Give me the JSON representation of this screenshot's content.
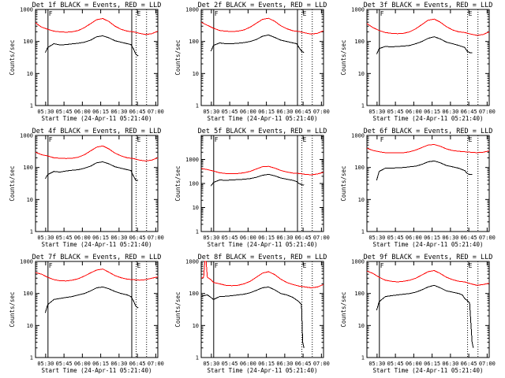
{
  "colors": {
    "events": "#000000",
    "lld": "#ff0000",
    "background": "#ffffff",
    "axes": "#000000"
  },
  "shared": {
    "ylabel": "Counts/sec",
    "xlabel": "Start Time (24-Apr-11 05:21:40)",
    "x_tick_labels": [
      "05:30",
      "05:45",
      "06:00",
      "06:15",
      "06:30",
      "06:45",
      "07:00"
    ],
    "y_tick_labels": [
      "1",
      "10",
      "100",
      "1000"
    ],
    "marker_labels": {
      "first": "F",
      "last": "E"
    }
  },
  "chart_data": [
    {
      "type": "line",
      "title": "Det 1f BLACK = Events, RED = LLD",
      "x_unit": "minutes after 05:21:40",
      "xlim": [
        0,
        100
      ],
      "ylim": [
        1,
        1000
      ],
      "yscale": "log",
      "x_ticks": [
        8.3,
        23.3,
        38.3,
        53.3,
        68.3,
        83.3,
        98.3
      ],
      "markers_solid": [
        10.2,
        78.7
      ],
      "markers_dotted": [
        82.3,
        90.8
      ],
      "series": [
        {
          "name": "Events",
          "color": "#000000",
          "x": [
            8,
            10,
            15,
            20,
            25,
            30,
            35,
            40,
            45,
            50,
            55,
            60,
            65,
            70,
            75,
            78,
            80,
            82,
            84
          ],
          "y": [
            45,
            65,
            85,
            78,
            80,
            84,
            88,
            95,
            110,
            140,
            150,
            130,
            105,
            95,
            85,
            80,
            60,
            40,
            35
          ]
        },
        {
          "name": "LLD",
          "color": "#ff0000",
          "x": [
            0,
            5,
            10,
            15,
            20,
            25,
            30,
            35,
            40,
            45,
            50,
            55,
            60,
            65,
            70,
            75,
            80,
            85,
            90,
            95,
            100
          ],
          "y": [
            380,
            280,
            240,
            210,
            200,
            195,
            200,
            220,
            270,
            360,
            480,
            520,
            420,
            300,
            240,
            210,
            200,
            180,
            165,
            175,
            210
          ]
        }
      ]
    },
    {
      "type": "line",
      "title": "Det 2f BLACK = Events, RED = LLD",
      "x_unit": "minutes after 05:21:40",
      "xlim": [
        0,
        100
      ],
      "ylim": [
        1,
        1000
      ],
      "yscale": "log",
      "x_ticks": [
        8.3,
        23.3,
        38.3,
        53.3,
        68.3,
        83.3,
        98.3
      ],
      "markers_solid": [
        10.2,
        78.7
      ],
      "markers_dotted": [
        82.3,
        90.8
      ],
      "series": [
        {
          "name": "Events",
          "color": "#000000",
          "x": [
            8,
            10,
            15,
            20,
            25,
            30,
            35,
            40,
            45,
            50,
            55,
            60,
            65,
            70,
            75,
            78,
            80,
            82,
            84
          ],
          "y": [
            50,
            75,
            90,
            85,
            85,
            88,
            92,
            100,
            115,
            145,
            160,
            135,
            110,
            100,
            90,
            85,
            65,
            50,
            45
          ]
        },
        {
          "name": "LLD",
          "color": "#ff0000",
          "x": [
            0,
            5,
            10,
            15,
            20,
            25,
            30,
            35,
            40,
            45,
            50,
            55,
            60,
            65,
            70,
            75,
            80,
            85,
            90,
            95,
            100
          ],
          "y": [
            400,
            320,
            260,
            220,
            210,
            205,
            210,
            230,
            280,
            370,
            490,
            530,
            430,
            310,
            250,
            215,
            205,
            185,
            170,
            180,
            215
          ]
        }
      ]
    },
    {
      "type": "line",
      "title": "Det 3f BLACK = Events, RED = LLD",
      "x_unit": "minutes after 05:21:40",
      "xlim": [
        0,
        100
      ],
      "ylim": [
        1,
        1000
      ],
      "yscale": "log",
      "x_ticks": [
        8.3,
        23.3,
        38.3,
        53.3,
        68.3,
        83.3,
        98.3
      ],
      "markers_solid": [
        10.2
      ],
      "markers_dotted": [
        82.3,
        90.8
      ],
      "series": [
        {
          "name": "Events",
          "color": "#000000",
          "x": [
            8,
            10,
            15,
            20,
            25,
            30,
            35,
            40,
            45,
            50,
            55,
            60,
            65,
            70,
            75,
            80,
            82,
            84,
            86
          ],
          "y": [
            40,
            60,
            70,
            68,
            70,
            72,
            75,
            85,
            100,
            125,
            140,
            120,
            95,
            85,
            75,
            65,
            50,
            45,
            45
          ]
        },
        {
          "name": "LLD",
          "color": "#ff0000",
          "x": [
            0,
            5,
            10,
            15,
            20,
            25,
            30,
            35,
            40,
            45,
            50,
            55,
            60,
            65,
            70,
            75,
            80,
            85,
            90,
            95,
            100
          ],
          "y": [
            360,
            270,
            220,
            190,
            180,
            175,
            180,
            200,
            250,
            340,
            460,
            500,
            400,
            290,
            230,
            200,
            190,
            170,
            155,
            165,
            200
          ]
        }
      ]
    },
    {
      "type": "line",
      "title": "Det 4f BLACK = Events, RED = LLD",
      "x_unit": "minutes after 05:21:40",
      "xlim": [
        0,
        100
      ],
      "ylim": [
        1,
        1000
      ],
      "yscale": "log",
      "x_ticks": [
        8.3,
        23.3,
        38.3,
        53.3,
        68.3,
        83.3,
        98.3
      ],
      "markers_solid": [
        10.2,
        78.7
      ],
      "markers_dotted": [
        82.3,
        90.8
      ],
      "series": [
        {
          "name": "Events",
          "color": "#000000",
          "x": [
            8,
            10,
            15,
            20,
            25,
            30,
            35,
            40,
            45,
            50,
            55,
            60,
            65,
            70,
            75,
            78,
            80,
            82,
            84
          ],
          "y": [
            45,
            60,
            75,
            72,
            78,
            82,
            85,
            95,
            110,
            140,
            150,
            130,
            105,
            95,
            85,
            80,
            55,
            40,
            40
          ]
        },
        {
          "name": "LLD",
          "color": "#ff0000",
          "x": [
            0,
            5,
            10,
            15,
            20,
            25,
            30,
            35,
            40,
            45,
            50,
            55,
            60,
            65,
            70,
            75,
            80,
            85,
            90,
            95,
            100
          ],
          "y": [
            300,
            250,
            230,
            200,
            195,
            190,
            195,
            210,
            250,
            330,
            430,
            470,
            380,
            280,
            230,
            200,
            190,
            170,
            160,
            170,
            200
          ]
        }
      ]
    },
    {
      "type": "line",
      "title": "Det 5f BLACK = Events, RED = LLD",
      "x_unit": "minutes after 05:21:40",
      "xlim": [
        0,
        100
      ],
      "ylim": [
        1,
        10000
      ],
      "yscale": "log",
      "x_ticks": [
        8.3,
        23.3,
        38.3,
        53.3,
        68.3,
        83.3,
        98.3
      ],
      "markers_solid": [
        10.2,
        78.7
      ],
      "markers_dotted": [
        82.3,
        90.8
      ],
      "series": [
        {
          "name": "Events",
          "color": "#000000",
          "x": [
            8,
            10,
            15,
            20,
            25,
            30,
            35,
            40,
            45,
            50,
            55,
            60,
            65,
            70,
            75,
            78,
            80,
            82,
            84
          ],
          "y": [
            80,
            110,
            140,
            135,
            140,
            145,
            150,
            160,
            180,
            220,
            240,
            210,
            170,
            150,
            135,
            120,
            100,
            90,
            85
          ]
        },
        {
          "name": "LLD",
          "color": "#ff0000",
          "x": [
            0,
            5,
            10,
            15,
            20,
            25,
            30,
            35,
            40,
            45,
            50,
            55,
            60,
            65,
            70,
            75,
            80,
            85,
            90,
            95,
            100
          ],
          "y": [
            420,
            380,
            330,
            280,
            260,
            255,
            260,
            280,
            320,
            400,
            500,
            520,
            440,
            350,
            300,
            270,
            260,
            240,
            230,
            250,
            290
          ]
        }
      ]
    },
    {
      "type": "line",
      "title": "Det 6f BLACK = Events, RED = LLD",
      "x_unit": "minutes after 05:21:40",
      "xlim": [
        0,
        100
      ],
      "ylim": [
        1,
        1000
      ],
      "yscale": "log",
      "x_ticks": [
        8.3,
        23.3,
        38.3,
        53.3,
        68.3,
        83.3,
        98.3
      ],
      "markers_solid": [],
      "markers_dotted": [
        82.3,
        90.8
      ],
      "series": [
        {
          "name": "Events",
          "color": "#000000",
          "x": [
            8,
            10,
            15,
            20,
            25,
            30,
            35,
            40,
            45,
            50,
            55,
            60,
            65,
            70,
            75,
            80,
            82,
            84,
            86
          ],
          "y": [
            40,
            75,
            95,
            95,
            98,
            100,
            105,
            110,
            125,
            150,
            160,
            140,
            115,
            105,
            95,
            80,
            65,
            60,
            60
          ]
        },
        {
          "name": "LLD",
          "color": "#ff0000",
          "x": [
            0,
            5,
            10,
            15,
            20,
            25,
            30,
            35,
            40,
            45,
            50,
            55,
            60,
            65,
            70,
            75,
            80,
            85,
            90,
            95,
            100
          ],
          "y": [
            400,
            340,
            310,
            290,
            285,
            285,
            290,
            310,
            350,
            420,
            500,
            520,
            460,
            380,
            340,
            320,
            310,
            300,
            290,
            300,
            330
          ]
        }
      ]
    },
    {
      "type": "line",
      "title": "Det 7f BLACK = Events, RED = LLD",
      "x_unit": "minutes after 05:21:40",
      "xlim": [
        0,
        100
      ],
      "ylim": [
        1,
        1000
      ],
      "yscale": "log",
      "x_ticks": [
        8.3,
        23.3,
        38.3,
        53.3,
        68.3,
        83.3,
        98.3
      ],
      "markers_solid": [
        10.2,
        78.7
      ],
      "markers_dotted": [
        82.3,
        90.8
      ],
      "series": [
        {
          "name": "Events",
          "color": "#000000",
          "x": [
            8,
            10,
            15,
            20,
            25,
            30,
            35,
            40,
            45,
            50,
            55,
            60,
            65,
            70,
            75,
            78,
            80,
            82,
            84
          ],
          "y": [
            25,
            45,
            65,
            70,
            75,
            80,
            90,
            100,
            120,
            150,
            160,
            140,
            115,
            100,
            90,
            80,
            60,
            40,
            35
          ]
        },
        {
          "name": "LLD",
          "color": "#ff0000",
          "x": [
            0,
            5,
            10,
            15,
            20,
            25,
            30,
            35,
            40,
            45,
            50,
            55,
            60,
            65,
            70,
            75,
            80,
            85,
            90,
            95,
            100
          ],
          "y": [
            450,
            400,
            320,
            270,
            250,
            245,
            260,
            290,
            350,
            440,
            540,
            580,
            460,
            360,
            310,
            280,
            270,
            260,
            270,
            300,
            330
          ]
        }
      ]
    },
    {
      "type": "line",
      "title": "Det 8f BLACK = Events, RED = LLD",
      "x_unit": "minutes after 05:21:40",
      "xlim": [
        0,
        100
      ],
      "ylim": [
        1,
        1000
      ],
      "yscale": "log",
      "x_ticks": [
        8.3,
        23.3,
        38.3,
        53.3,
        68.3,
        83.3,
        98.3
      ],
      "markers_solid": [
        10.2
      ],
      "markers_dotted": [
        82.3,
        90.8
      ],
      "series": [
        {
          "name": "Events",
          "color": "#000000",
          "x": [
            0,
            2,
            5,
            8,
            10,
            15,
            20,
            25,
            30,
            35,
            40,
            45,
            50,
            55,
            60,
            65,
            70,
            75,
            80,
            82,
            83,
            84
          ],
          "y": [
            80,
            85,
            90,
            75,
            65,
            80,
            82,
            85,
            90,
            95,
            105,
            125,
            150,
            160,
            130,
            100,
            90,
            75,
            55,
            45,
            3,
            2
          ]
        },
        {
          "name": "LLD",
          "color": "#ff0000",
          "x": [
            0,
            2,
            3,
            4,
            5,
            8,
            10,
            15,
            20,
            25,
            30,
            35,
            40,
            45,
            50,
            55,
            60,
            65,
            70,
            75,
            80,
            85,
            90,
            95,
            100
          ],
          "y": [
            300,
            320,
            1000,
            1000,
            320,
            270,
            220,
            200,
            180,
            175,
            180,
            200,
            240,
            320,
            430,
            480,
            390,
            280,
            220,
            190,
            170,
            160,
            150,
            160,
            190
          ]
        }
      ]
    },
    {
      "type": "line",
      "title": "Det 9f BLACK = Events, RED = LLD",
      "x_unit": "minutes after 05:21:40",
      "xlim": [
        0,
        100
      ],
      "ylim": [
        1,
        1000
      ],
      "yscale": "log",
      "x_ticks": [
        8.3,
        23.3,
        38.3,
        53.3,
        68.3,
        83.3,
        98.3
      ],
      "markers_solid": [
        10.2
      ],
      "markers_dotted": [
        82.3,
        90.8
      ],
      "series": [
        {
          "name": "Events",
          "color": "#000000",
          "x": [
            8,
            10,
            15,
            20,
            25,
            30,
            35,
            40,
            45,
            50,
            55,
            60,
            65,
            70,
            75,
            78,
            80,
            82,
            84,
            86,
            87
          ],
          "y": [
            30,
            55,
            80,
            85,
            90,
            95,
            100,
            110,
            130,
            160,
            180,
            150,
            120,
            110,
            100,
            90,
            70,
            60,
            50,
            3,
            2
          ]
        },
        {
          "name": "LLD",
          "color": "#ff0000",
          "x": [
            0,
            5,
            10,
            15,
            20,
            25,
            30,
            35,
            40,
            45,
            50,
            55,
            60,
            65,
            70,
            75,
            80,
            85,
            90,
            95,
            100
          ],
          "y": [
            500,
            420,
            320,
            260,
            240,
            230,
            240,
            260,
            300,
            380,
            480,
            520,
            420,
            320,
            270,
            240,
            230,
            200,
            180,
            190,
            210
          ]
        }
      ]
    }
  ]
}
